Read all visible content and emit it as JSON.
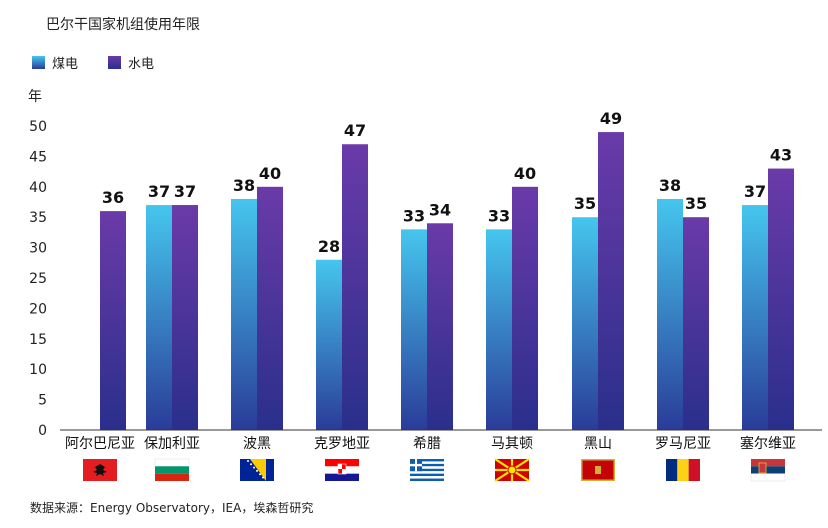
{
  "title": "巴尔干国家机组使用年限",
  "legend": [
    {
      "label": "煤电",
      "color": "#3fa8d8"
    },
    {
      "label": "水电",
      "color": "#4a2a8f"
    }
  ],
  "y_unit": "年",
  "source": "数据来源：Energy Observatory，IEA，埃森哲研究",
  "chart_data": {
    "type": "bar",
    "title": "巴尔干国家机组使用年限",
    "ylabel": "年",
    "ylim": [
      0,
      50
    ],
    "yticks": [
      0,
      5,
      10,
      15,
      20,
      25,
      30,
      35,
      40,
      45,
      50
    ],
    "categories": [
      "阿尔巴尼亚",
      "保加利亚",
      "波黑",
      "克罗地亚",
      "希腊",
      "马其顿",
      "黑山",
      "罗马尼亚",
      "塞尔维亚"
    ],
    "series": [
      {
        "name": "煤电",
        "values": [
          null,
          37,
          38,
          28,
          33,
          33,
          35,
          38,
          37
        ]
      },
      {
        "name": "水电",
        "values": [
          36,
          37,
          40,
          47,
          34,
          40,
          49,
          35,
          43
        ]
      }
    ],
    "flag_icons": [
      "albania-flag-icon",
      "bulgaria-flag-icon",
      "bosnia-flag-icon",
      "croatia-flag-icon",
      "greece-flag-icon",
      "macedonia-flag-icon",
      "montenegro-flag-icon",
      "romania-flag-icon",
      "serbia-flag-icon"
    ]
  }
}
